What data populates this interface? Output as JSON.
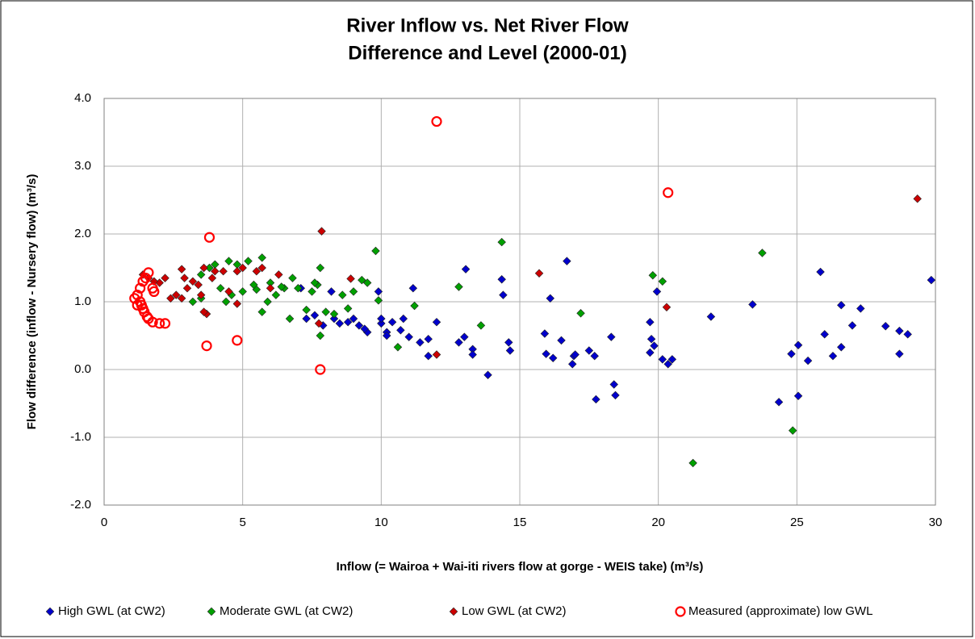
{
  "chart_data": {
    "type": "scatter",
    "title": [
      "River Inflow vs. Net River Flow",
      "Difference and Level (2000-01)"
    ],
    "xlabel": "Inflow (= Wairoa + Wai-iti rivers flow at gorge - WEIS take) (m³/s)",
    "ylabel": "Flow difference (inflow - Nursery flow) (m³/s)",
    "xlim": [
      0,
      30
    ],
    "xticks": [
      0,
      5,
      10,
      15,
      20,
      25,
      30
    ],
    "ylim": [
      -2,
      4
    ],
    "yticks": [
      {
        "value": -2,
        "label": "-2.0"
      },
      {
        "value": -1,
        "label": "-1.0"
      },
      {
        "value": 0,
        "label": "0.0"
      },
      {
        "value": 1,
        "label": "1.0"
      },
      {
        "value": 2,
        "label": "2.0"
      },
      {
        "value": 3,
        "label": "3.0"
      },
      {
        "value": 4,
        "label": "4.0"
      }
    ],
    "grid": true,
    "legend": "bottom",
    "series": [
      {
        "name": "High GWL (at CW2)",
        "color": "#0000cc",
        "marker": "diamond",
        "x": [
          29.85,
          25.85,
          23.4,
          21.9,
          16.7,
          13.05,
          14.35,
          14.4,
          16.1,
          11.15,
          19.7,
          19.75,
          19.85,
          19.7,
          19.95,
          20.15,
          20.5,
          20.35,
          18.3,
          18.4,
          18.45,
          17.75,
          17.5,
          17.7,
          16.95,
          17.0,
          16.9,
          16.5,
          15.9,
          15.95,
          16.2,
          14.6,
          14.65,
          13.85,
          13.3,
          13.3,
          13.0,
          12.8,
          12.0,
          11.7,
          11.7,
          11.4,
          11.0,
          10.8,
          10.7,
          10.4,
          10.2,
          10.0,
          10.0,
          9.9,
          9.5,
          9.2,
          9.0,
          8.8,
          8.3,
          8.2,
          7.6,
          7.3,
          7.1,
          7.9,
          26.0,
          26.3,
          26.6,
          26.6,
          27.0,
          27.3,
          28.2,
          28.7,
          28.7,
          29.0,
          24.35,
          24.8,
          25.05,
          25.05,
          25.4,
          10.2,
          9.4,
          8.5
        ],
        "y": [
          1.32,
          1.44,
          0.96,
          0.78,
          1.6,
          1.48,
          1.33,
          1.1,
          1.05,
          1.2,
          0.7,
          0.45,
          0.35,
          0.25,
          1.15,
          0.15,
          0.15,
          0.08,
          0.48,
          -0.22,
          -0.38,
          -0.44,
          0.28,
          0.2,
          0.2,
          0.22,
          0.08,
          0.43,
          0.53,
          0.23,
          0.17,
          0.4,
          0.28,
          -0.08,
          0.3,
          0.22,
          0.48,
          0.4,
          0.7,
          0.45,
          0.2,
          0.4,
          0.48,
          0.75,
          0.58,
          0.7,
          0.55,
          0.68,
          0.75,
          1.15,
          0.55,
          0.65,
          0.75,
          0.7,
          0.75,
          1.15,
          0.8,
          0.75,
          1.2,
          0.65,
          0.52,
          0.2,
          0.95,
          0.33,
          0.65,
          0.9,
          0.64,
          0.57,
          0.23,
          0.52,
          -0.48,
          0.23,
          0.36,
          -0.39,
          0.13,
          0.5,
          0.6,
          0.68
        ]
      },
      {
        "name": "Moderate GWL (at CW2)",
        "color": "#00a000",
        "marker": "diamond",
        "x": [
          9.8,
          14.35,
          23.75,
          21.25,
          24.85,
          19.8,
          20.15,
          17.2,
          13.6,
          12.8,
          11.2,
          10.6,
          9.3,
          9.5,
          9.0,
          8.6,
          7.8,
          7.7,
          7.6,
          7.8,
          7.3,
          6.7,
          6.5,
          6.0,
          5.7,
          5.5,
          5.2,
          4.8,
          4.5,
          4.0,
          3.8,
          3.5,
          3.2,
          3.5,
          4.2,
          4.6,
          5.0,
          5.4,
          5.7,
          5.9,
          6.2,
          6.8,
          7.0,
          8.3,
          8.8,
          9.9,
          8.0,
          4.4,
          6.4,
          7.5
        ],
        "y": [
          1.75,
          1.88,
          1.72,
          -1.38,
          -0.9,
          1.39,
          1.3,
          0.83,
          0.65,
          1.22,
          0.94,
          0.33,
          1.32,
          1.28,
          1.15,
          1.1,
          1.5,
          1.25,
          1.28,
          0.5,
          0.88,
          0.75,
          1.2,
          1.28,
          1.65,
          1.18,
          1.6,
          1.55,
          1.6,
          1.55,
          1.5,
          1.4,
          1.0,
          1.05,
          1.2,
          1.1,
          1.15,
          1.25,
          0.85,
          1.0,
          1.1,
          1.35,
          1.2,
          0.82,
          0.9,
          1.02,
          0.85,
          1.0,
          1.22,
          1.15
        ]
      },
      {
        "name": "Low GWL (at CW2)",
        "color": "#cc0000",
        "marker": "diamond",
        "x": [
          29.35,
          7.85,
          15.7,
          20.3,
          12.0,
          8.9,
          7.75,
          3.7,
          3.6,
          4.8,
          2.8,
          2.9,
          3.0,
          3.2,
          3.4,
          3.6,
          4.0,
          4.3,
          4.8,
          5.0,
          5.5,
          5.7,
          6.3,
          2.2,
          2.0,
          2.4,
          2.6,
          1.8,
          1.6,
          1.4,
          3.5,
          4.5,
          6.0,
          2.8,
          3.9
        ],
        "y": [
          2.52,
          2.04,
          1.42,
          0.92,
          0.22,
          1.34,
          0.68,
          0.82,
          0.85,
          0.97,
          1.48,
          1.35,
          1.2,
          1.3,
          1.25,
          1.5,
          1.45,
          1.45,
          1.45,
          1.5,
          1.45,
          1.5,
          1.4,
          1.35,
          1.28,
          1.05,
          1.1,
          1.3,
          1.35,
          1.4,
          1.1,
          1.15,
          1.2,
          1.05,
          1.35
        ]
      },
      {
        "name": "Measured (approximate) low GWL",
        "color": "#ff0000",
        "marker": "circle",
        "x": [
          3.8,
          12.0,
          20.35,
          3.7,
          4.8,
          7.8,
          1.6,
          1.75,
          1.8,
          1.1,
          1.2,
          1.3,
          1.35,
          1.4,
          1.45,
          1.55,
          1.6,
          1.75,
          2.0,
          2.2,
          1.3,
          1.2,
          1.4,
          1.5
        ],
        "y": [
          1.95,
          3.66,
          2.61,
          0.35,
          0.43,
          0.0,
          1.43,
          1.2,
          1.15,
          1.05,
          1.1,
          1.0,
          0.95,
          0.9,
          0.85,
          0.78,
          0.75,
          0.7,
          0.68,
          0.68,
          1.2,
          0.95,
          1.3,
          1.35
        ]
      }
    ]
  }
}
